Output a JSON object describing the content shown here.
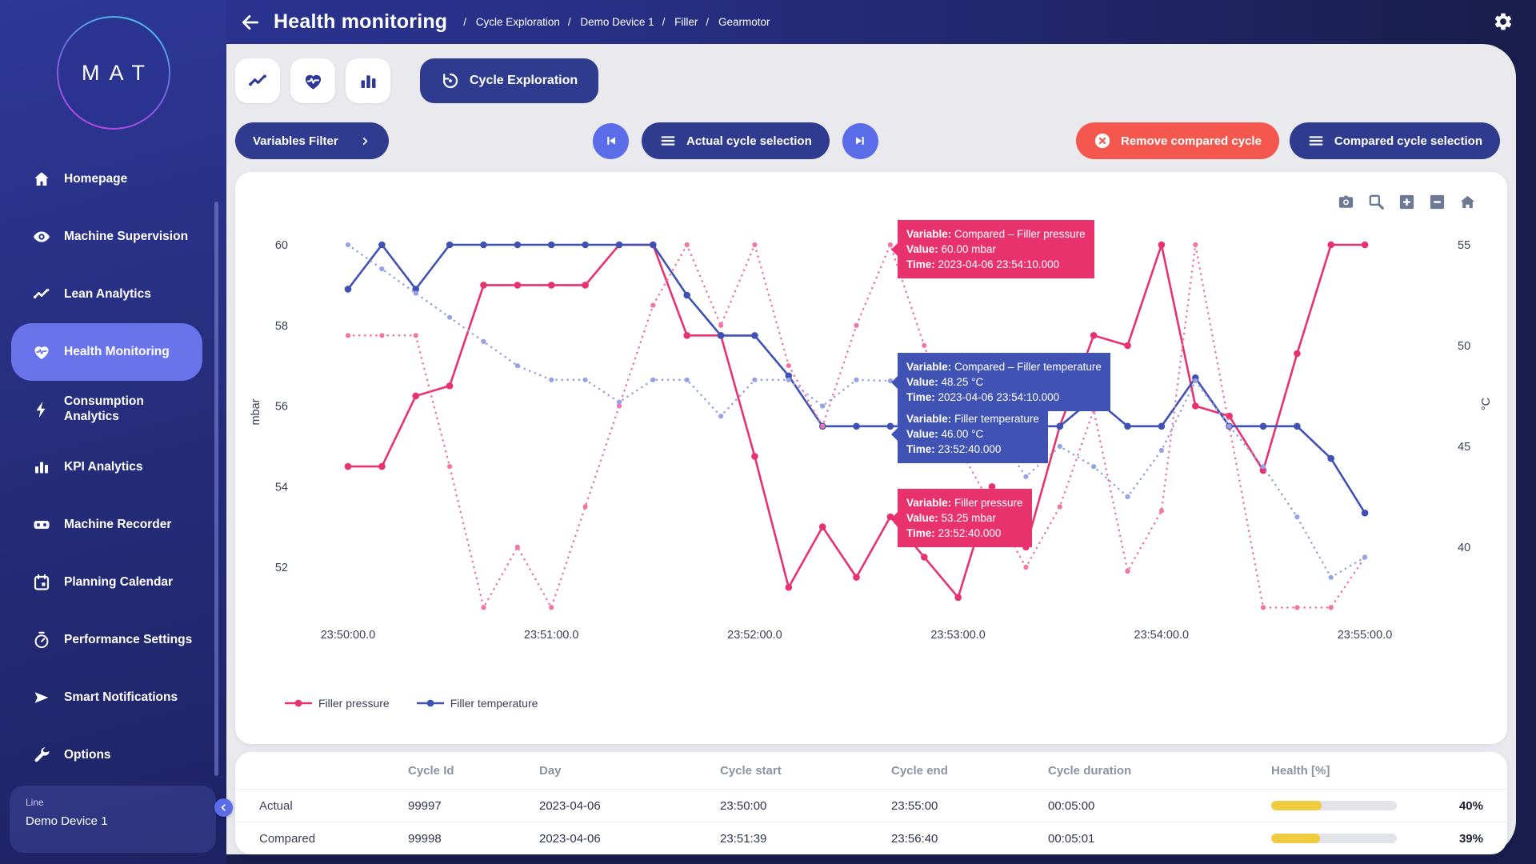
{
  "header": {
    "title": "Health monitoring",
    "breadcrumbs": [
      "Cycle Exploration",
      "Demo Device 1",
      "Filler",
      "Gearmotor"
    ]
  },
  "sidebar": {
    "logo": "MAT",
    "items": [
      {
        "label": "Homepage",
        "icon": "home",
        "active": false
      },
      {
        "label": "Machine Supervision",
        "icon": "eye",
        "active": false
      },
      {
        "label": "Lean Analytics",
        "icon": "trend",
        "active": false
      },
      {
        "label": "Health Monitoring",
        "icon": "heart",
        "active": true
      },
      {
        "label": "Consumption Analytics",
        "icon": "bolt",
        "active": false
      },
      {
        "label": "KPI Analytics",
        "icon": "bars",
        "active": false
      },
      {
        "label": "Machine Recorder",
        "icon": "recorder",
        "active": false
      },
      {
        "label": "Planning Calendar",
        "icon": "calendar",
        "active": false
      },
      {
        "label": "Performance Settings",
        "icon": "gauge",
        "active": false
      },
      {
        "label": "Smart Notifications",
        "icon": "send",
        "active": false
      },
      {
        "label": "Options",
        "icon": "wrench",
        "active": false
      }
    ],
    "device": {
      "label": "Line",
      "name": "Demo Device 1"
    }
  },
  "toolbar": {
    "cycle_exploration": "Cycle Exploration"
  },
  "controls": {
    "variables_filter": "Variables Filter",
    "actual_cycle": "Actual cycle selection",
    "remove_compared": "Remove compared cycle",
    "compared_cycle": "Compared cycle selection"
  },
  "modebar_icons": [
    "camera-icon",
    "zoom-box-icon",
    "zoom-in-icon",
    "zoom-out-icon",
    "home-reset-icon"
  ],
  "tooltip_labels": {
    "variable": "Variable:",
    "value": "Value:",
    "time": "Time:"
  },
  "tooltips": [
    {
      "variable": "Compared – Filler pressure",
      "value": "60.00 mbar",
      "time": "2023-04-06 23:54:10.000",
      "color": "pink"
    },
    {
      "variable": "Compared – Filler temperature",
      "value": "48.25 °C",
      "time": "2023-04-06 23:54:10.000",
      "color": "blue"
    },
    {
      "variable": "Filler temperature",
      "value": "46.00 °C",
      "time": "23:52:40.000",
      "color": "blue"
    },
    {
      "variable": "Filler pressure",
      "value": "53.25 mbar",
      "time": "23:52:40.000",
      "color": "pink"
    }
  ],
  "chart_data": {
    "type": "line",
    "x_ticks": [
      "23:50:00.0",
      "23:51:00.0",
      "23:52:00.0",
      "23:53:00.0",
      "23:54:00.0",
      "23:55:00.0"
    ],
    "x_step_seconds": 10,
    "y_left": {
      "label": "mbar",
      "ticks": [
        60,
        58,
        56,
        54,
        52
      ],
      "range": [
        50.8,
        60.4
      ]
    },
    "y_right": {
      "label": "°C",
      "ticks": [
        55,
        50,
        45,
        40
      ],
      "range": [
        36.9,
        55.4
      ]
    },
    "grid": false,
    "legend_position": "bottom-left",
    "series": [
      {
        "name": "Filler pressure",
        "axis": "left",
        "unit": "mbar",
        "style": "solid",
        "color": "#e8326e",
        "values": [
          54.5,
          54.5,
          56.25,
          56.5,
          59,
          59,
          59,
          59,
          60,
          60,
          57.75,
          57.75,
          54.75,
          51.5,
          53,
          51.75,
          53.25,
          52.25,
          51.25,
          54,
          52.5,
          55.5,
          57.75,
          57.5,
          60,
          56,
          55.75,
          54.4,
          57.3,
          60,
          60
        ]
      },
      {
        "name": "Filler temperature",
        "axis": "right",
        "unit": "°C",
        "style": "solid",
        "color": "#3f51b5",
        "values": [
          52.8,
          55,
          52.8,
          55,
          55,
          55,
          55,
          55,
          55,
          55,
          52.5,
          50.5,
          50.5,
          48.5,
          46,
          46,
          46,
          46,
          47.5,
          46,
          46,
          46,
          47.4,
          46,
          46,
          48.4,
          46,
          46,
          46,
          44.4,
          41.7
        ]
      },
      {
        "name": "Compared – Filler pressure",
        "axis": "left",
        "unit": "mbar",
        "style": "dotted",
        "color": "#f176a4",
        "values": [
          57.75,
          57.75,
          57.75,
          54.5,
          51,
          52.5,
          51,
          53.5,
          56,
          58.5,
          60,
          58,
          60,
          57,
          55.5,
          58,
          60,
          57.5,
          55,
          53.5,
          52,
          53.5,
          55.9,
          51.9,
          53.4,
          60,
          55.5,
          51,
          51,
          51,
          52.25
        ]
      },
      {
        "name": "Compared – Filler temperature",
        "axis": "right",
        "unit": "°C",
        "style": "dotted",
        "color": "#96a2e6",
        "values": [
          55,
          53.8,
          52.6,
          51.4,
          50.2,
          49,
          48.3,
          48.3,
          47.2,
          48.3,
          48.3,
          46.5,
          48.3,
          48.3,
          47,
          48.3,
          48.25,
          47,
          45,
          46,
          43.5,
          45,
          44,
          42.5,
          44.8,
          48.25,
          46,
          44,
          41.5,
          38.5,
          39.5
        ]
      }
    ],
    "legend": [
      {
        "label": "Filler pressure",
        "color": "#e8326e"
      },
      {
        "label": "Filler temperature",
        "color": "#3f51b5"
      }
    ]
  },
  "table": {
    "headers": [
      "Cycle Id",
      "Day",
      "Cycle start",
      "Cycle end",
      "Cycle duration",
      "Health [%]"
    ],
    "rows": [
      {
        "label": "Actual",
        "cycle_id": "99997",
        "day": "2023-04-06",
        "cycle_start": "23:50:00",
        "cycle_end": "23:55:00",
        "cycle_duration": "00:05:00",
        "health": 40,
        "health_label": "40%"
      },
      {
        "label": "Compared",
        "cycle_id": "99998",
        "day": "2023-04-06",
        "cycle_start": "23:51:39",
        "cycle_end": "23:56:40",
        "cycle_duration": "00:05:01",
        "health": 39,
        "health_label": "39%"
      }
    ]
  }
}
